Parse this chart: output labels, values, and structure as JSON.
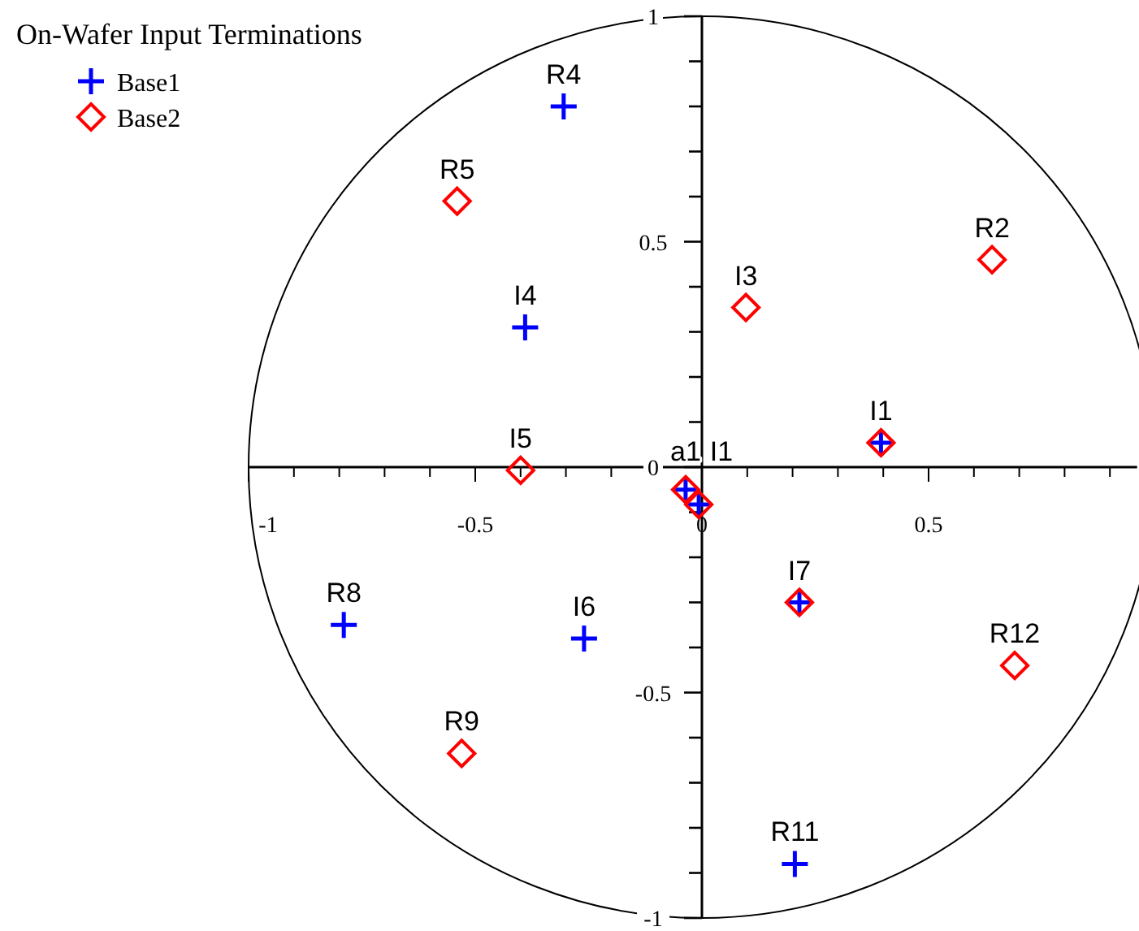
{
  "chart_data": {
    "type": "scatter",
    "title": "On-Wafer Input Terminations",
    "legend": "top left",
    "grid": false,
    "xlim": [
      -1,
      0.96
    ],
    "ylim": [
      -1,
      1
    ],
    "xticks": [
      -1,
      {
        "value": -0.9,
        "label": null
      },
      {
        "value": -0.8,
        "label": null
      },
      {
        "value": -0.7,
        "label": null
      },
      {
        "value": -0.6,
        "label": null
      },
      -0.5,
      {
        "value": -0.4,
        "label": null
      },
      {
        "value": -0.3,
        "label": null
      },
      {
        "value": -0.2,
        "label": null
      },
      {
        "value": -0.1,
        "label": null
      },
      0,
      {
        "value": 0.1,
        "label": null
      },
      {
        "value": 0.2,
        "label": null
      },
      {
        "value": 0.3,
        "label": null
      },
      {
        "value": 0.4,
        "label": null
      },
      0.5,
      {
        "value": 0.6,
        "label": null
      },
      {
        "value": 0.7,
        "label": null
      },
      {
        "value": 0.8,
        "label": null
      },
      {
        "value": 0.9,
        "label": null
      }
    ],
    "yticks": [
      -1,
      {
        "value": -0.9,
        "label": null
      },
      {
        "value": -0.8,
        "label": null
      },
      {
        "value": -0.7,
        "label": null
      },
      {
        "value": -0.6,
        "label": null
      },
      -0.5,
      {
        "value": -0.4,
        "label": null
      },
      {
        "value": -0.3,
        "label": null
      },
      {
        "value": -0.2,
        "label": null
      },
      {
        "value": -0.1,
        "label": null
      },
      0,
      {
        "value": 0.1,
        "label": null
      },
      {
        "value": 0.2,
        "label": null
      },
      {
        "value": 0.3,
        "label": null
      },
      {
        "value": 0.4,
        "label": null
      },
      0.5,
      {
        "value": 0.6,
        "label": null
      },
      {
        "value": 0.7,
        "label": null
      },
      {
        "value": 0.8,
        "label": null
      },
      {
        "value": 0.9,
        "label": null
      },
      1
    ],
    "series": [
      {
        "name": "Base1",
        "color": "#0000ff",
        "marker": "cross",
        "x": [
          -0.305,
          -0.39,
          0.395,
          -0.036,
          -0.007,
          0.215,
          -0.79,
          -0.26,
          0.205
        ],
        "values": [
          0.8,
          0.31,
          0.054,
          -0.05,
          -0.083,
          -0.3,
          -0.35,
          -0.38,
          -0.88
        ]
      },
      {
        "name": "Base2",
        "color": "#ff0000",
        "marker": "diamond",
        "x": [
          -0.54,
          0.64,
          0.097,
          0.395,
          -0.4,
          -0.036,
          -0.007,
          0.215,
          0.69,
          -0.53
        ],
        "values": [
          0.59,
          0.46,
          0.354,
          0.054,
          -0.007,
          -0.05,
          -0.083,
          -0.3,
          -0.44,
          -0.635
        ]
      }
    ],
    "annotations": [
      {
        "text": "R4",
        "x": -0.305,
        "y": 0.8
      },
      {
        "text": "R5",
        "x": -0.54,
        "y": 0.59
      },
      {
        "text": "R2",
        "x": 0.64,
        "y": 0.46
      },
      {
        "text": "I3",
        "x": 0.097,
        "y": 0.354
      },
      {
        "text": "I4",
        "x": -0.39,
        "y": 0.31
      },
      {
        "text": "I1",
        "x": 0.395,
        "y": 0.054
      },
      {
        "text": "I5",
        "x": -0.4,
        "y": -0.007
      },
      {
        "text": "a1",
        "x": -0.036,
        "y": -0.05
      },
      {
        "text": "I1",
        "x": -0.007,
        "y": -0.083
      },
      {
        "text": "I7",
        "x": 0.215,
        "y": -0.3
      },
      {
        "text": "R8",
        "x": -0.79,
        "y": -0.35
      },
      {
        "text": "I6",
        "x": -0.26,
        "y": -0.38
      },
      {
        "text": "R12",
        "x": 0.69,
        "y": -0.44
      },
      {
        "text": "R9",
        "x": -0.53,
        "y": -0.635
      },
      {
        "text": "R11",
        "x": 0.205,
        "y": -0.88
      }
    ]
  }
}
